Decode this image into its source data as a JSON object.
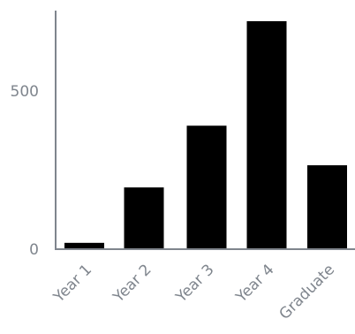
{
  "chart_data": {
    "type": "bar",
    "categories": [
      "Year 1",
      "Year 2",
      "Year 3",
      "Year 4",
      "Graduate"
    ],
    "values": [
      20,
      195,
      390,
      720,
      265
    ],
    "ylim": [
      0,
      750
    ],
    "yticks": [
      0,
      500
    ],
    "title": "",
    "xlabel": "",
    "ylabel": "",
    "grid": false,
    "colors": {
      "bar": "#000000",
      "axis": "#7f858d",
      "label": "#7f858d"
    }
  }
}
